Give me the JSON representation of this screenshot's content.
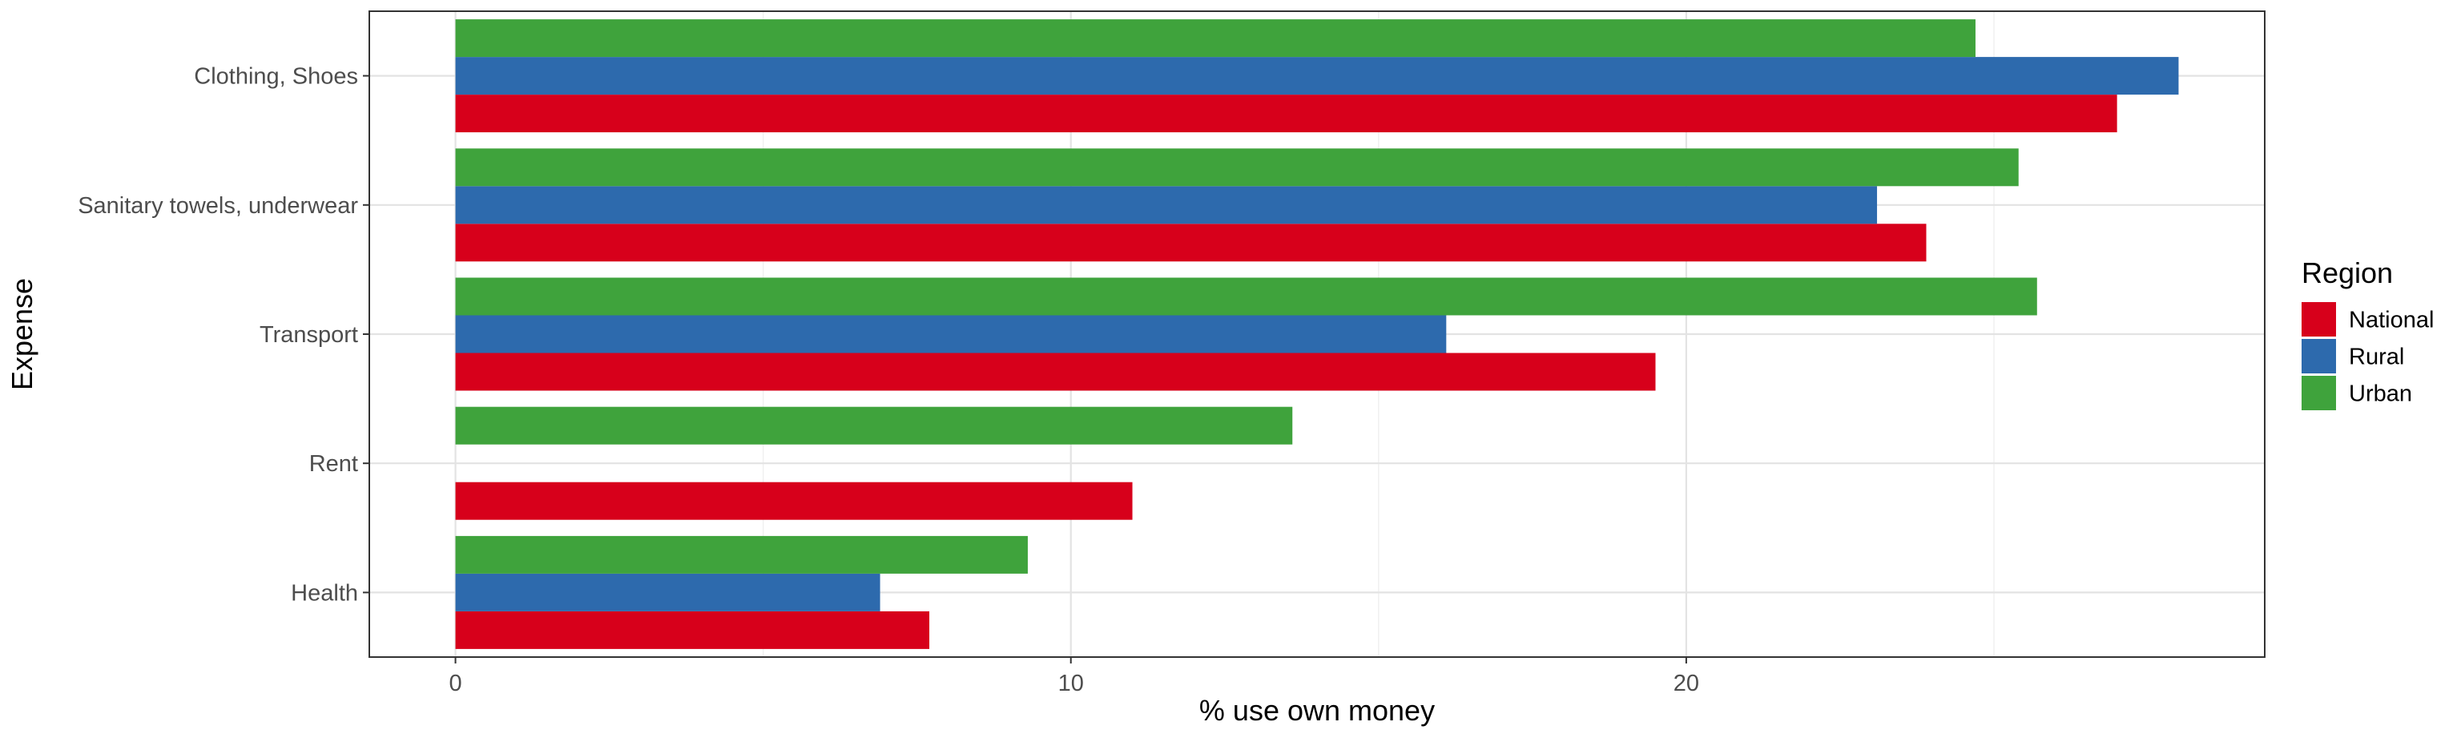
{
  "chart_data": {
    "type": "bar",
    "orientation": "horizontal",
    "categories": [
      "Health",
      "Rent",
      "Transport",
      "Sanitary towels, underwear",
      "Clothing, Shoes"
    ],
    "series": [
      {
        "name": "National",
        "color": "#d7001b",
        "values": [
          7.7,
          11.0,
          19.5,
          23.9,
          27.0
        ]
      },
      {
        "name": "Rural",
        "color": "#2d6aad",
        "values": [
          6.9,
          null,
          16.1,
          23.1,
          28.0
        ]
      },
      {
        "name": "Urban",
        "color": "#3fa33c",
        "values": [
          9.3,
          13.6,
          25.7,
          25.4,
          24.7
        ]
      }
    ],
    "xlabel": "% use own money",
    "ylabel": "Expense",
    "xlim": [
      -1.4,
      29.4
    ],
    "xticks": [
      0,
      10,
      20
    ],
    "grid": true,
    "legend": {
      "title": "Region",
      "position": "right"
    }
  }
}
